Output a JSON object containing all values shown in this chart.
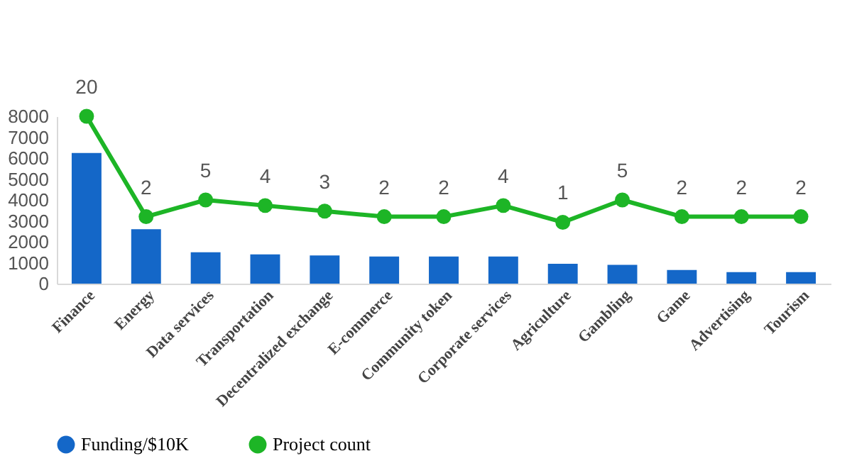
{
  "chart_data": {
    "type": "bar",
    "categories": [
      "Finance",
      "Energy",
      "Data services",
      "Transportation",
      "Decentralized exchange",
      "E-commerce",
      "Community token",
      "Corporate services",
      "Agriculture",
      "Gambling",
      "Game",
      "Advertising",
      "Tourism"
    ],
    "series": [
      {
        "name": "Funding/$10K",
        "color": "#1467c8",
        "values": [
          6250,
          2600,
          1500,
          1400,
          1350,
          1300,
          1300,
          1300,
          950,
          900,
          650,
          550,
          550
        ]
      },
      {
        "name": "Project count",
        "type": "line",
        "axis": "y2",
        "color": "#1db526",
        "marker": "circle",
        "data_labels": true,
        "values": [
          20,
          2,
          5,
          4,
          3,
          2,
          2,
          4,
          1,
          5,
          2,
          2,
          2
        ]
      }
    ],
    "ylim": [
      0,
      8000
    ],
    "yticks": [
      0,
      1000,
      2000,
      3000,
      4000,
      5000,
      6000,
      7000,
      8000
    ],
    "y2lim": [
      -10,
      20
    ],
    "grid": false,
    "legend": "bottom"
  }
}
